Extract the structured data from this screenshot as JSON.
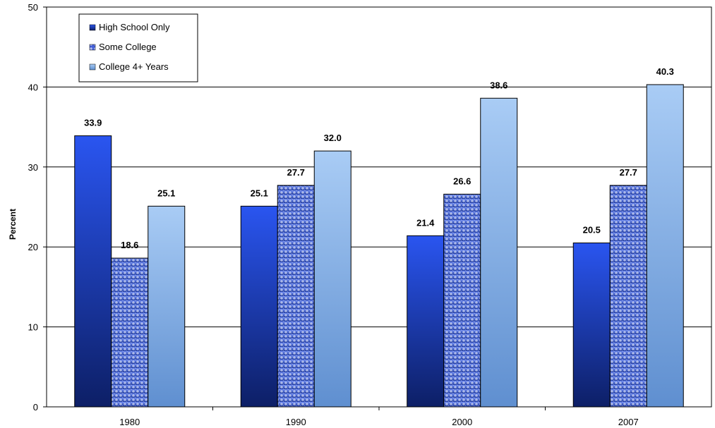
{
  "chart_data": {
    "type": "bar",
    "ylabel": "Percent",
    "ylim": [
      0,
      50
    ],
    "yticks": [
      0,
      10,
      20,
      30,
      40,
      50
    ],
    "grid": true,
    "legend_position": "top-left",
    "categories": [
      "1980",
      "1990",
      "2000",
      "2007"
    ],
    "series": [
      {
        "name": "High School Only",
        "values": [
          33.9,
          25.1,
          21.4,
          20.5
        ],
        "labels": [
          "33.9",
          "25.1",
          "21.4",
          "20.5"
        ],
        "color": "#1f45d6",
        "pattern": "solid"
      },
      {
        "name": "Some College",
        "values": [
          18.6,
          27.7,
          26.6,
          27.7
        ],
        "labels": [
          "18.6",
          "27.7",
          "26.6",
          "27.7"
        ],
        "color": "#5a78e6",
        "pattern": "checker"
      },
      {
        "name": "College 4+ Years",
        "values": [
          25.1,
          32.0,
          38.6,
          40.3
        ],
        "labels": [
          "25.1",
          "32.0",
          "38.6",
          "40.3"
        ],
        "color": "#9cc0ee",
        "pattern": "solid"
      }
    ]
  }
}
